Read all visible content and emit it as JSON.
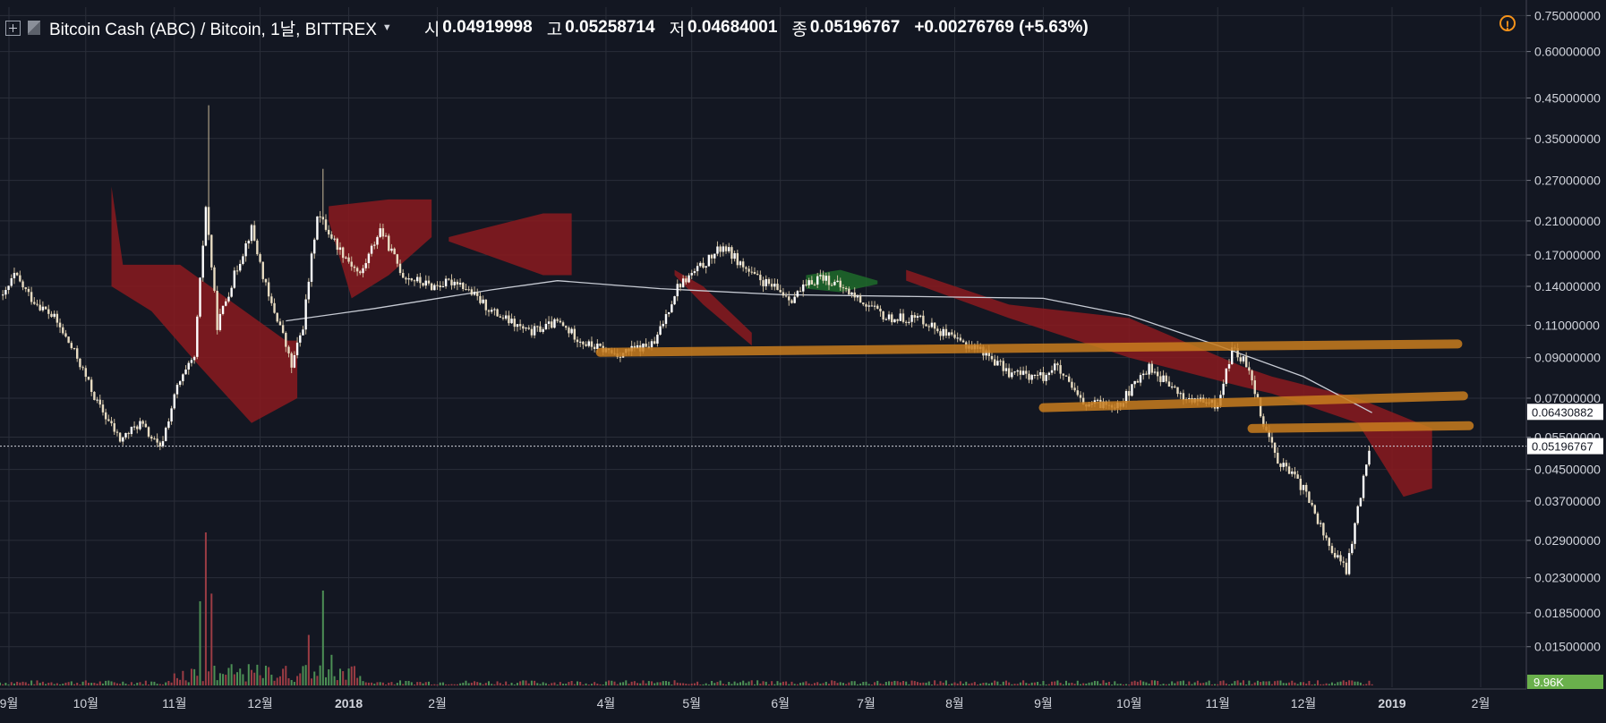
{
  "header": {
    "symbol": "Bitcoin Cash (ABC) / Bitcoin, 1날, BITTREX",
    "open_label": "시",
    "open_value": "0.04919998",
    "high_label": "고",
    "high_value": "0.05258714",
    "low_label": "저",
    "low_value": "0.04684001",
    "close_label": "종",
    "close_value": "0.05196767",
    "change": "+0.00276769 (+5.63%)"
  },
  "colors": {
    "background": "#131722",
    "grid": "#2a2e39",
    "candle": "#ffffff",
    "cloud_bear": "#8b1a1f",
    "cloud_bull": "#1e6b2a",
    "moving_average": "#c7cbd4",
    "trendline": "#c87d1e",
    "volume_up": "#4c8f55",
    "volume_down": "#9b3c44",
    "price_tag": "#ffffff",
    "volume_tag": "#6ab04c"
  },
  "chart_data": {
    "type": "candlestick",
    "y_scale": "log",
    "ylim": [
      0.0118,
      0.79
    ],
    "y_ticks": [
      "0.75000000",
      "0.60000000",
      "0.45000000",
      "0.35000000",
      "0.27000000",
      "0.21000000",
      "0.17000000",
      "0.14000000",
      "0.11000000",
      "0.09000000",
      "0.07000000",
      "0.05500000",
      "0.04500000",
      "0.03700000",
      "0.02900000",
      "0.02300000",
      "0.01850000",
      "0.01500000"
    ],
    "x_ticks": [
      "9월",
      "10월",
      "11월",
      "12월",
      "2018",
      "2월",
      "4월",
      "5월",
      "6월",
      "7월",
      "8월",
      "9월",
      "10월",
      "11월",
      "12월",
      "2019",
      "2월"
    ],
    "price_path": [
      [
        "2017-09-02",
        0.13
      ],
      [
        "2017-09-06",
        0.15
      ],
      [
        "2017-09-12",
        0.13
      ],
      [
        "2017-09-20",
        0.115
      ],
      [
        "2017-09-28",
        0.09
      ],
      [
        "2017-10-05",
        0.068
      ],
      [
        "2017-10-13",
        0.054
      ],
      [
        "2017-10-20",
        0.06
      ],
      [
        "2017-10-27",
        0.051
      ],
      [
        "2017-11-02",
        0.075
      ],
      [
        "2017-11-08",
        0.09
      ],
      [
        "2017-11-12",
        0.23
      ],
      [
        "2017-11-16",
        0.11
      ],
      [
        "2017-11-22",
        0.15
      ],
      [
        "2017-11-28",
        0.2
      ],
      [
        "2017-12-04",
        0.13
      ],
      [
        "2017-12-08",
        0.11
      ],
      [
        "2017-12-12",
        0.085
      ],
      [
        "2017-12-16",
        0.11
      ],
      [
        "2017-12-21",
        0.22
      ],
      [
        "2017-12-28",
        0.18
      ],
      [
        "2018-01-05",
        0.15
      ],
      [
        "2018-01-12",
        0.2
      ],
      [
        "2018-01-20",
        0.15
      ],
      [
        "2018-01-30",
        0.14
      ],
      [
        "2018-02-08",
        0.145
      ],
      [
        "2018-02-20",
        0.12
      ],
      [
        "2018-03-05",
        0.105
      ],
      [
        "2018-03-15",
        0.112
      ],
      [
        "2018-03-25",
        0.098
      ],
      [
        "2018-04-05",
        0.092
      ],
      [
        "2018-04-18",
        0.098
      ],
      [
        "2018-04-26",
        0.14
      ],
      [
        "2018-05-05",
        0.16
      ],
      [
        "2018-05-12",
        0.18
      ],
      [
        "2018-05-22",
        0.15
      ],
      [
        "2018-06-05",
        0.13
      ],
      [
        "2018-06-15",
        0.15
      ],
      [
        "2018-06-25",
        0.135
      ],
      [
        "2018-07-08",
        0.115
      ],
      [
        "2018-07-20",
        0.115
      ],
      [
        "2018-08-01",
        0.1
      ],
      [
        "2018-08-10",
        0.095
      ],
      [
        "2018-08-20",
        0.082
      ],
      [
        "2018-09-01",
        0.08
      ],
      [
        "2018-09-05",
        0.086
      ],
      [
        "2018-09-15",
        0.067
      ],
      [
        "2018-09-28",
        0.068
      ],
      [
        "2018-10-08",
        0.085
      ],
      [
        "2018-10-20",
        0.07
      ],
      [
        "2018-11-01",
        0.067
      ],
      [
        "2018-11-06",
        0.095
      ],
      [
        "2018-11-12",
        0.085
      ],
      [
        "2018-11-17",
        0.06
      ],
      [
        "2018-11-22",
        0.048
      ],
      [
        "2018-12-01",
        0.04
      ],
      [
        "2018-12-10",
        0.028
      ],
      [
        "2018-12-16",
        0.024
      ],
      [
        "2018-12-20",
        0.035
      ],
      [
        "2018-12-24",
        0.052
      ]
    ],
    "price_extremes": [
      [
        "2017-11-13",
        0.43
      ],
      [
        "2017-12-23",
        0.29
      ]
    ],
    "moving_average": [
      [
        "2017-12-10",
        0.113
      ],
      [
        "2018-01-10",
        0.122
      ],
      [
        "2018-02-20",
        0.137
      ],
      [
        "2018-03-15",
        0.145
      ],
      [
        "2018-04-20",
        0.138
      ],
      [
        "2018-06-01",
        0.133
      ],
      [
        "2018-08-01",
        0.131
      ],
      [
        "2018-09-01",
        0.13
      ],
      [
        "2018-10-01",
        0.117
      ],
      [
        "2018-11-01",
        0.097
      ],
      [
        "2018-12-01",
        0.08
      ],
      [
        "2018-12-25",
        0.064
      ]
    ],
    "cloud": [
      {
        "color": "bear",
        "upper": [
          [
            "2017-10-10",
            0.26
          ],
          [
            "2017-10-14",
            0.16
          ],
          [
            "2017-11-03",
            0.16
          ],
          [
            "2017-12-10",
            0.1
          ],
          [
            "2017-12-14",
            0.1
          ]
        ],
        "lower": [
          [
            "2017-10-10",
            0.14
          ],
          [
            "2017-10-24",
            0.12
          ],
          [
            "2017-11-10",
            0.085
          ],
          [
            "2017-11-28",
            0.06
          ],
          [
            "2017-12-14",
            0.07
          ]
        ]
      },
      {
        "color": "bear",
        "upper": [
          [
            "2017-12-25",
            0.23
          ],
          [
            "2018-01-15",
            0.24
          ],
          [
            "2018-01-30",
            0.24
          ]
        ],
        "lower": [
          [
            "2017-12-25",
            0.21
          ],
          [
            "2018-01-02",
            0.13
          ],
          [
            "2018-01-15",
            0.15
          ],
          [
            "2018-01-30",
            0.19
          ]
        ]
      },
      {
        "color": "bear",
        "upper": [
          [
            "2018-02-05",
            0.19
          ],
          [
            "2018-03-10",
            0.22
          ],
          [
            "2018-03-20",
            0.22
          ]
        ],
        "lower": [
          [
            "2018-02-05",
            0.185
          ],
          [
            "2018-03-10",
            0.15
          ],
          [
            "2018-03-20",
            0.15
          ]
        ]
      },
      {
        "color": "bear",
        "upper": [
          [
            "2018-04-25",
            0.155
          ],
          [
            "2018-05-05",
            0.14
          ],
          [
            "2018-05-22",
            0.105
          ]
        ],
        "lower": [
          [
            "2018-04-25",
            0.15
          ],
          [
            "2018-05-05",
            0.125
          ],
          [
            "2018-05-22",
            0.097
          ]
        ]
      },
      {
        "color": "bull",
        "upper": [
          [
            "2018-06-10",
            0.15
          ],
          [
            "2018-06-22",
            0.155
          ],
          [
            "2018-07-05",
            0.145
          ]
        ],
        "lower": [
          [
            "2018-06-10",
            0.138
          ],
          [
            "2018-06-22",
            0.135
          ],
          [
            "2018-07-05",
            0.142
          ]
        ]
      },
      {
        "color": "bear",
        "upper": [
          [
            "2018-07-15",
            0.155
          ],
          [
            "2018-08-20",
            0.125
          ],
          [
            "2018-10-01",
            0.115
          ],
          [
            "2018-11-10",
            0.085
          ],
          [
            "2018-11-20",
            0.08
          ],
          [
            "2018-12-20",
            0.07
          ],
          [
            "2019-01-15",
            0.058
          ]
        ],
        "lower": [
          [
            "2018-07-15",
            0.145
          ],
          [
            "2018-08-20",
            0.115
          ],
          [
            "2018-10-01",
            0.09
          ],
          [
            "2018-11-10",
            0.075
          ],
          [
            "2018-11-20",
            0.072
          ],
          [
            "2018-12-20",
            0.06
          ],
          [
            "2019-01-05",
            0.038
          ],
          [
            "2019-01-15",
            0.04
          ]
        ]
      }
    ],
    "trendlines": [
      {
        "from": [
          "2018-03-30",
          0.093
        ],
        "to": [
          "2019-01-24",
          0.098
        ]
      },
      {
        "from": [
          "2018-09-01",
          0.066
        ],
        "to": [
          "2019-01-26",
          0.071
        ]
      },
      {
        "from": [
          "2018-11-13",
          0.058
        ],
        "to": [
          "2019-01-28",
          0.059
        ]
      }
    ],
    "volume": {
      "max": 1.0,
      "spikes": [
        [
          "2017-11-10",
          0.55
        ],
        [
          "2017-11-12",
          1.0
        ],
        [
          "2017-11-14",
          0.6
        ],
        [
          "2017-12-18",
          0.33
        ],
        [
          "2017-12-23",
          0.62
        ],
        [
          "2017-12-26",
          0.2
        ]
      ]
    },
    "labels": [
      {
        "name": "ma-last",
        "value": "0.06430882",
        "price": 0.0643
      },
      {
        "name": "close-last",
        "value": "0.05196767",
        "price": 0.052
      },
      {
        "name": "volume-last",
        "value": "9.96K"
      }
    ]
  }
}
